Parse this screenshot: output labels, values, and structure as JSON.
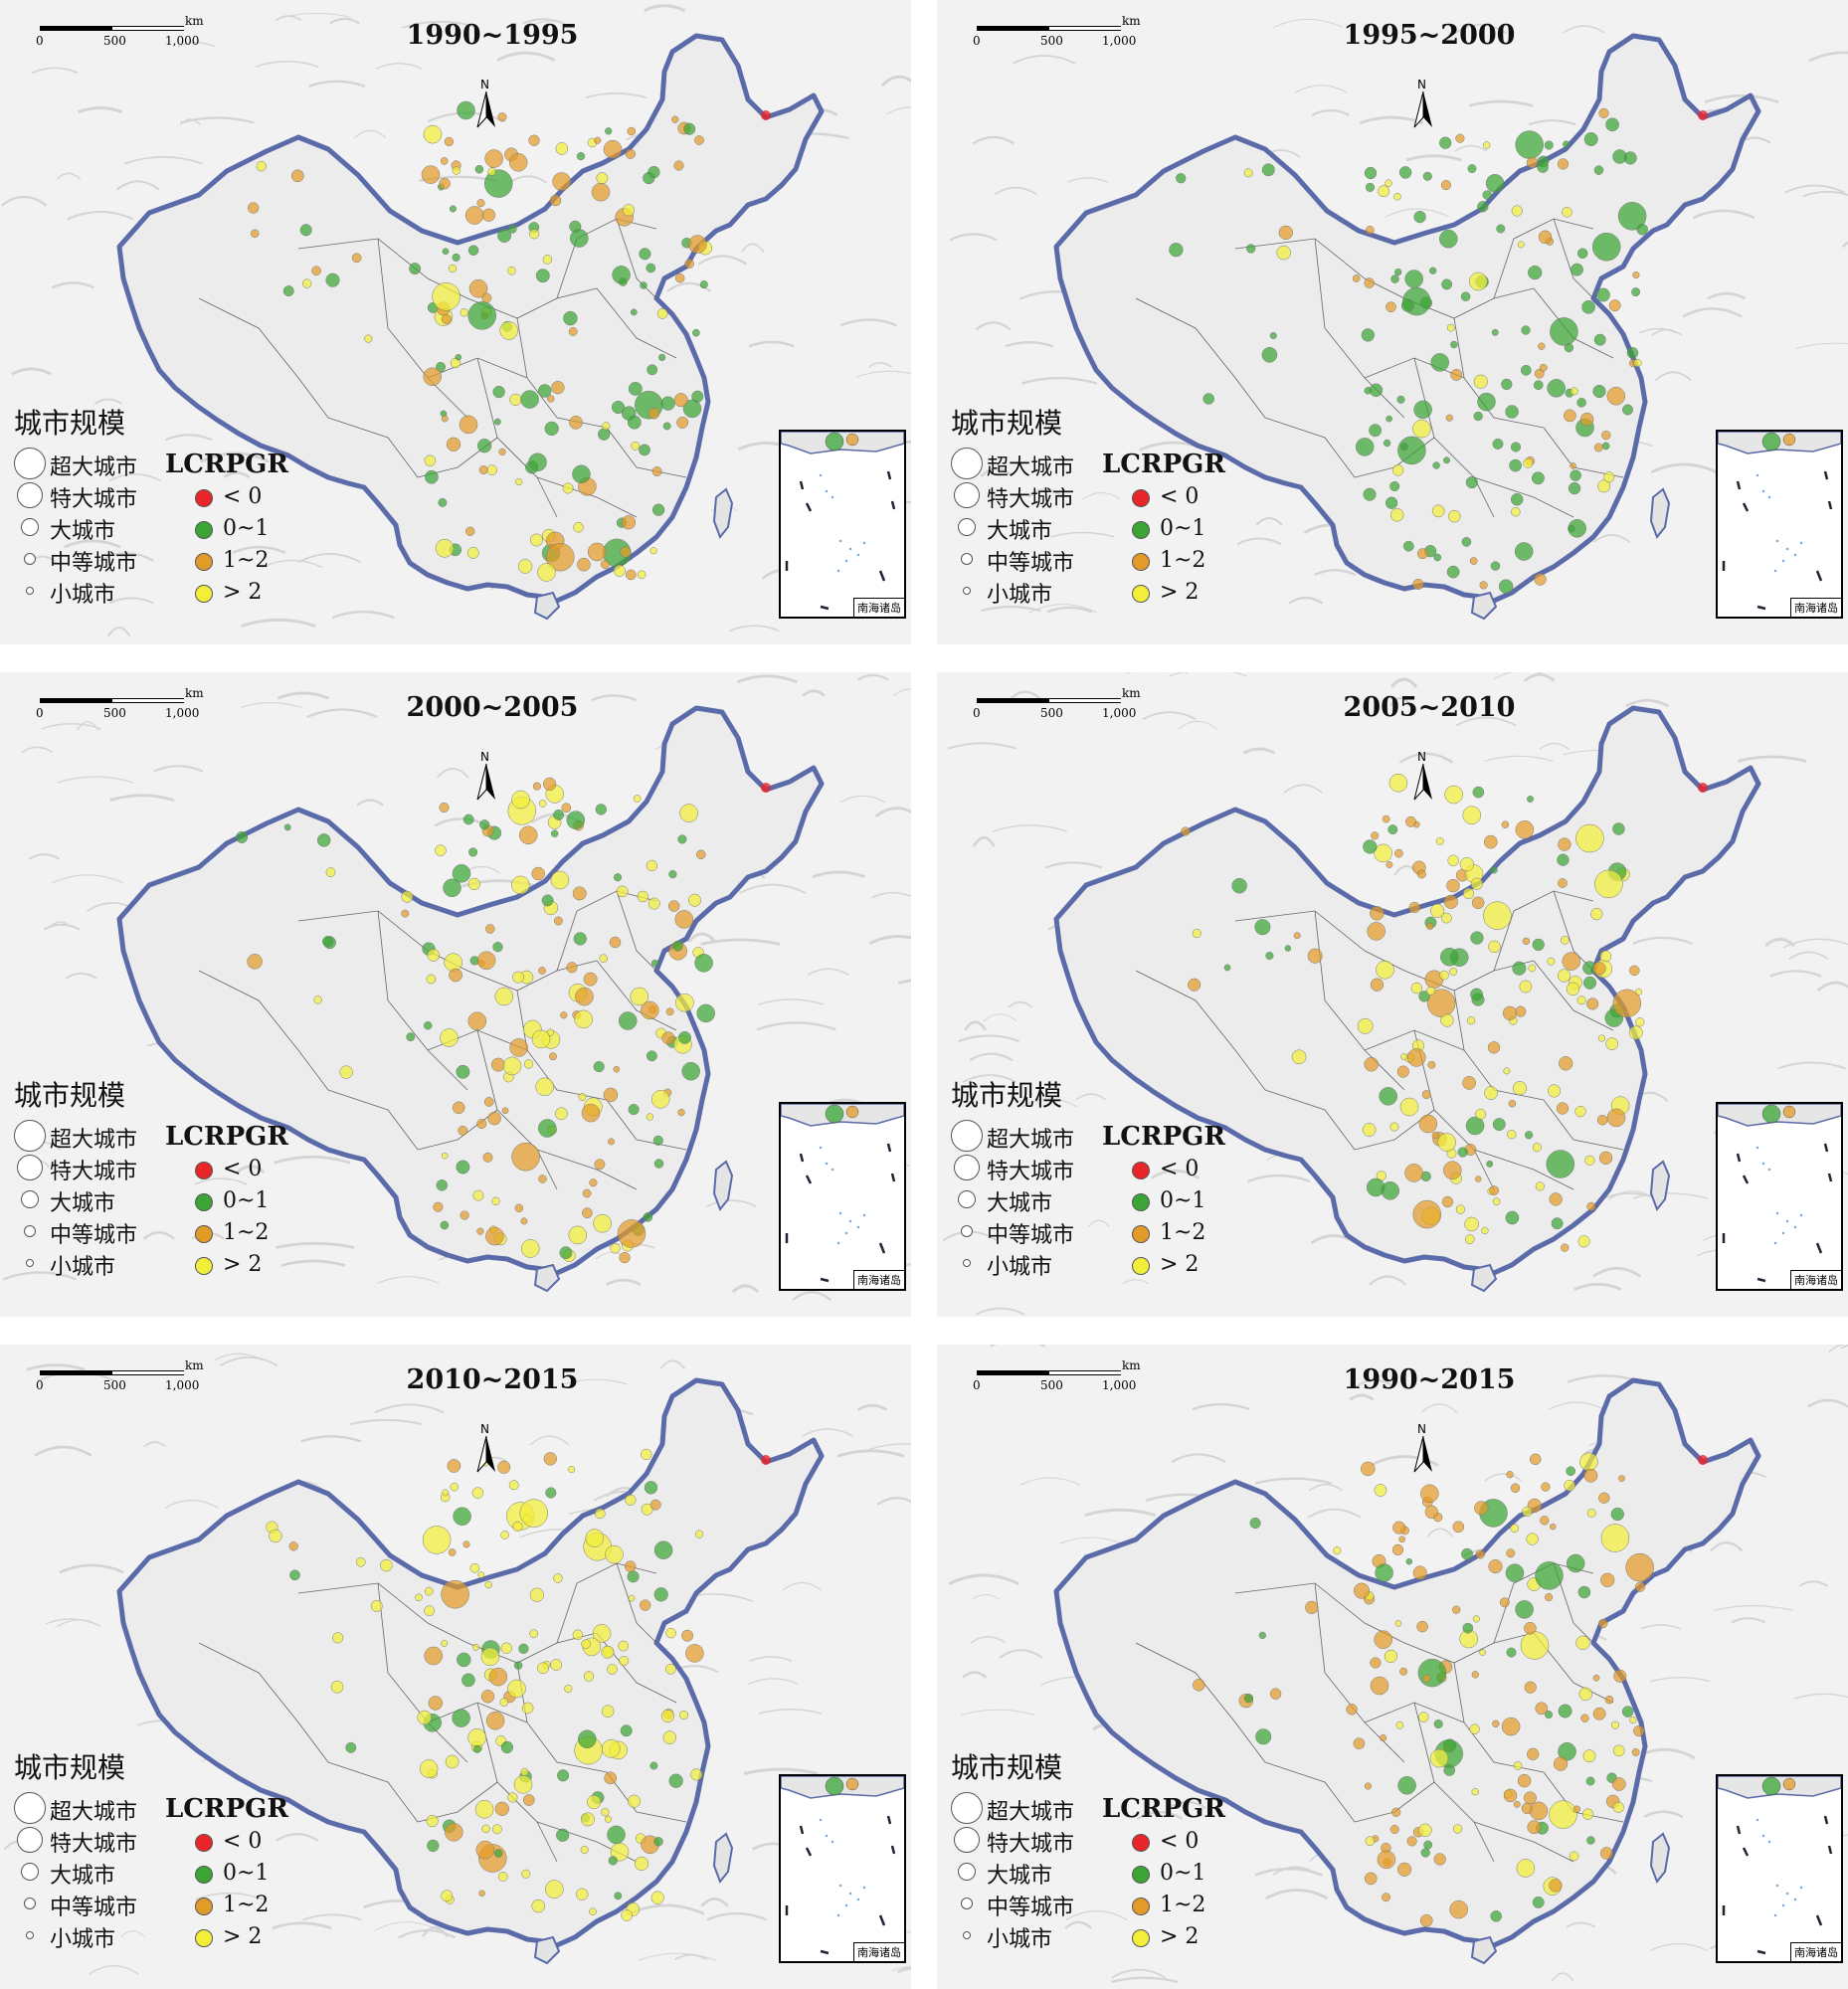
{
  "panels": [
    {
      "title": "1990~1995"
    },
    {
      "title": "1995~2000"
    },
    {
      "title": "2000~2005"
    },
    {
      "title": "2005~2010"
    },
    {
      "title": "2010~2015"
    },
    {
      "title": "1990~2015"
    }
  ],
  "scale_bar": {
    "ticks": [
      "0",
      "500",
      "1,000"
    ],
    "unit": "km"
  },
  "north_arrow": {
    "label": "N"
  },
  "legend_size": {
    "title": "城市规模",
    "items": [
      "超大城市",
      "特大城市",
      "大城市",
      "中等城市",
      "小城市"
    ]
  },
  "legend_rate": {
    "title": "LCRPGR",
    "items": [
      {
        "label": "< 0",
        "color": "#e8262a"
      },
      {
        "label": "0~1",
        "color": "#3aa535"
      },
      {
        "label": "1~2",
        "color": "#e39b28"
      },
      {
        "label": "> 2",
        "color": "#f2ee3a"
      }
    ]
  },
  "inset": {
    "label": "南海诸岛"
  }
}
